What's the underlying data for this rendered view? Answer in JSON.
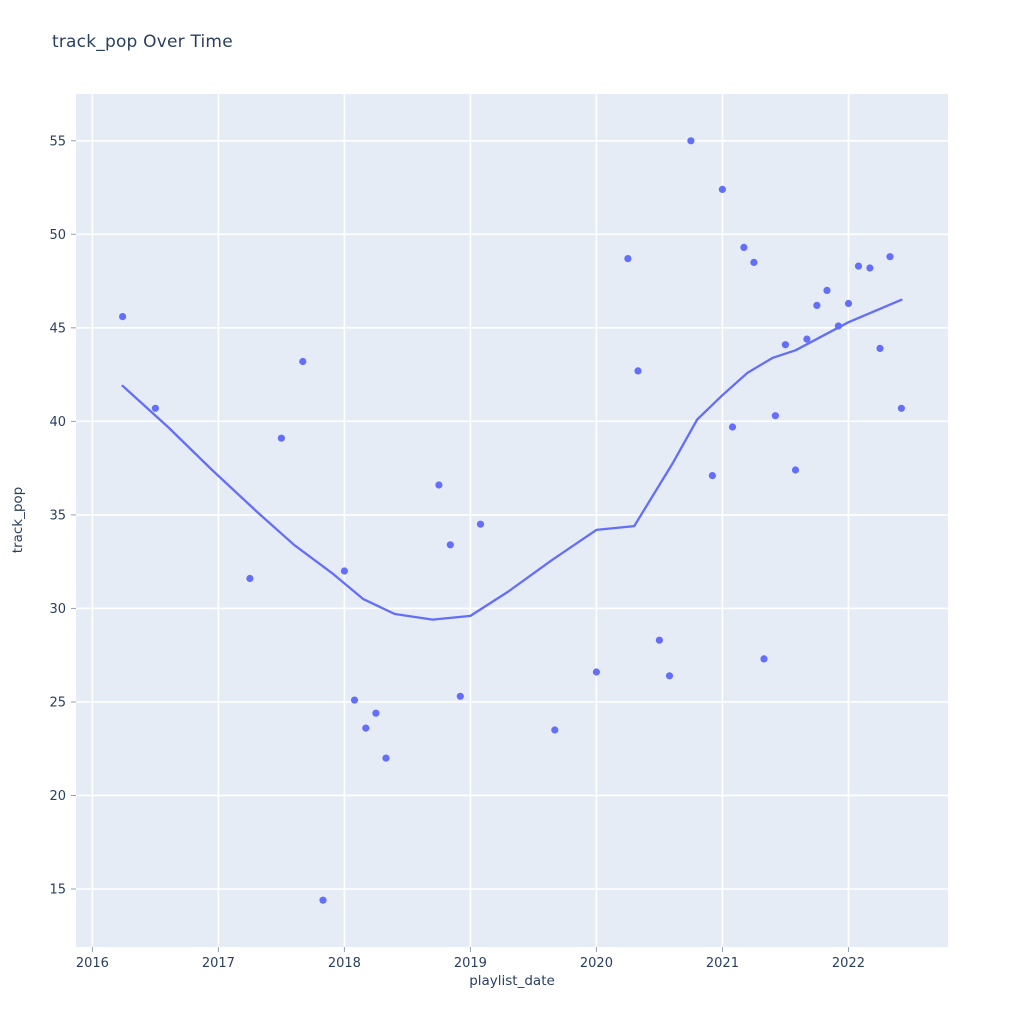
{
  "title": "track_pop Over Time",
  "axes": {
    "x_title": "playlist_date",
    "y_title": "track_pop"
  },
  "chart_data": {
    "type": "scatter",
    "title": "track_pop Over Time",
    "xlabel": "playlist_date",
    "ylabel": "track_pop",
    "x_ticks": [
      2016,
      2017,
      2018,
      2019,
      2020,
      2021,
      2022
    ],
    "y_ticks": [
      15,
      20,
      25,
      30,
      35,
      40,
      45,
      50,
      55
    ],
    "xlim": [
      2015.87,
      2022.79
    ],
    "ylim": [
      11.9,
      57.5
    ],
    "grid": true,
    "legend": false,
    "colors": {
      "marker": "#636EFA",
      "trend_line": "#636EFA",
      "plot_background": "#E5ECF6",
      "paper_background": "#FFFFFF",
      "gridline": "#FFFFFF",
      "text": "#2a3f5f",
      "tick_mark": "#8da0bf"
    },
    "points": [
      [
        2016.24,
        45.6
      ],
      [
        2016.5,
        40.7
      ],
      [
        2017.25,
        31.6
      ],
      [
        2017.5,
        39.1
      ],
      [
        2017.67,
        43.2
      ],
      [
        2017.83,
        14.4
      ],
      [
        2018.0,
        32.0
      ],
      [
        2018.08,
        25.1
      ],
      [
        2018.17,
        23.6
      ],
      [
        2018.25,
        24.4
      ],
      [
        2018.33,
        22.0
      ],
      [
        2018.75,
        36.6
      ],
      [
        2018.84,
        33.4
      ],
      [
        2018.92,
        25.3
      ],
      [
        2019.08,
        34.5
      ],
      [
        2019.67,
        23.5
      ],
      [
        2020.0,
        26.6
      ],
      [
        2020.25,
        48.7
      ],
      [
        2020.33,
        42.7
      ],
      [
        2020.5,
        28.3
      ],
      [
        2020.58,
        26.4
      ],
      [
        2020.75,
        55.0
      ],
      [
        2020.92,
        37.1
      ],
      [
        2021.0,
        52.4
      ],
      [
        2021.08,
        39.7
      ],
      [
        2021.17,
        49.3
      ],
      [
        2021.25,
        48.5
      ],
      [
        2021.33,
        27.3
      ],
      [
        2021.42,
        40.3
      ],
      [
        2021.5,
        44.1
      ],
      [
        2021.58,
        37.4
      ],
      [
        2021.67,
        44.4
      ],
      [
        2021.75,
        46.2
      ],
      [
        2021.83,
        47.0
      ],
      [
        2021.92,
        45.1
      ],
      [
        2022.0,
        46.3
      ],
      [
        2022.08,
        48.3
      ],
      [
        2022.17,
        48.2
      ],
      [
        2022.25,
        43.9
      ],
      [
        2022.33,
        48.8
      ],
      [
        2022.42,
        40.7
      ]
    ],
    "trend_line": [
      [
        2016.24,
        41.9
      ],
      [
        2016.6,
        39.7
      ],
      [
        2016.95,
        37.4
      ],
      [
        2017.3,
        35.2
      ],
      [
        2017.6,
        33.4
      ],
      [
        2017.9,
        31.9
      ],
      [
        2018.15,
        30.5
      ],
      [
        2018.4,
        29.7
      ],
      [
        2018.7,
        29.4
      ],
      [
        2019.0,
        29.6
      ],
      [
        2019.3,
        30.9
      ],
      [
        2019.65,
        32.6
      ],
      [
        2020.0,
        34.2
      ],
      [
        2020.3,
        34.4
      ],
      [
        2020.6,
        37.7
      ],
      [
        2020.8,
        40.1
      ],
      [
        2021.0,
        41.4
      ],
      [
        2021.2,
        42.6
      ],
      [
        2021.4,
        43.4
      ],
      [
        2021.58,
        43.8
      ],
      [
        2022.0,
        45.3
      ],
      [
        2022.42,
        46.5
      ]
    ]
  }
}
